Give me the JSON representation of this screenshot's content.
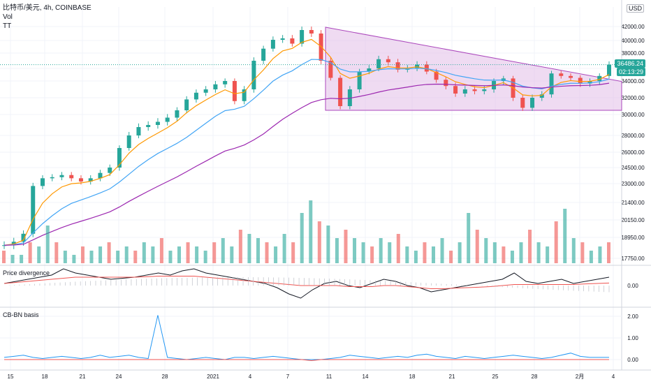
{
  "header": {
    "title": "比特币/美元, 4h, COINBASE",
    "line2": "Vol",
    "line3": "TT"
  },
  "price_axis_currency": "USD",
  "current_price": "36486.24",
  "countdown": "02:13:29",
  "panes": {
    "div_label": "Price divergence",
    "basis_label": "CB-BN basis"
  },
  "colors": {
    "up": "#26a69a",
    "down": "#ef5350",
    "ema_fast": "#ff9800",
    "ema_mid": "#42a5f5",
    "ema_slow": "#9c27b0",
    "triangle_fill": "#e1bee7",
    "triangle_stroke": "#ab47bc",
    "basis_up": "#2196f3",
    "basis_down": "#ef5350"
  },
  "chart_data": [
    {
      "type": "candlestick",
      "title": "比特币/美元, 4h, COINBASE",
      "x_tick_labels": [
        "15",
        "18",
        "21",
        "24",
        "28",
        "2021",
        "4",
        "7",
        "11",
        "14",
        "18",
        "21",
        "25",
        "28",
        "2月",
        "4"
      ],
      "y_tick_labels": [
        "17750.00",
        "18950.00",
        "20150.00",
        "21400.00",
        "23000.00",
        "24500.00",
        "26000.00",
        "28000.00",
        "30000.00",
        "32000.00",
        "34000.00",
        "36000.00",
        "38000.00",
        "40000.00",
        "42000.00"
      ],
      "ylim": [
        17750,
        42000
      ],
      "last_price": 36486.24,
      "indicators": [
        "EMA fast (orange)",
        "EMA mid (blue)",
        "EMA slow (purple)"
      ],
      "annotations": [
        "descending triangle from ~41900 to ~34600, base ~30500"
      ],
      "ohlc_close_approx": [
        18500,
        18700,
        19200,
        22800,
        23500,
        23600,
        23800,
        23500,
        23200,
        23500,
        24000,
        24500,
        26500,
        28000,
        28800,
        29000,
        29300,
        29700,
        30500,
        31800,
        32600,
        33000,
        33600,
        34000,
        31600,
        33000,
        37000,
        38700,
        40100,
        40300,
        39500,
        41500,
        41000,
        37000,
        34500,
        31000,
        33000,
        35500,
        36000,
        37200,
        36800,
        35800,
        36000,
        36500,
        35500,
        34200,
        33400,
        32500,
        33000,
        32800,
        33000,
        34000,
        34400,
        32000,
        30800,
        32000,
        32400,
        35200,
        34800,
        34500,
        33700,
        34000,
        34800,
        36486
      ]
    },
    {
      "type": "bar",
      "title": "Vol",
      "note": "volume bars, relative heights only (no axis printed)",
      "values": [
        3,
        2,
        2,
        5,
        4,
        9,
        5,
        3,
        2,
        4,
        3,
        4,
        5,
        3,
        4,
        3,
        5,
        4,
        6,
        3,
        4,
        5,
        4,
        3,
        5,
        6,
        4,
        8,
        7,
        6,
        5,
        4,
        7,
        5,
        12,
        15,
        10,
        9,
        6,
        8,
        6,
        5,
        4,
        6,
        5,
        7,
        4,
        3,
        5,
        4,
        6,
        3,
        5,
        12,
        8,
        6,
        5,
        4,
        3,
        5,
        8,
        5,
        4,
        10,
        13,
        6,
        5,
        3,
        4,
        5
      ]
    },
    {
      "type": "line",
      "title": "Price divergence",
      "y_tick_labels": [
        "0.00"
      ],
      "series": [
        {
          "values": [
            0.1,
            0.2,
            0.3,
            0.4,
            0.5,
            0.8,
            0.6,
            0.5,
            0.4,
            0.3,
            0.35,
            0.4,
            0.5,
            0.6,
            0.5,
            0.7,
            0.8,
            0.6,
            0.5,
            0.4,
            0.3,
            0.2,
            0.1,
            -0.1,
            -0.4,
            -0.6,
            -0.2,
            0.1,
            0.2,
            0.0,
            -0.1,
            0.1,
            0.3,
            0.2,
            0.0,
            -0.1,
            -0.3,
            -0.2,
            -0.1,
            0.0,
            0.1,
            0.2,
            0.3,
            0.6,
            0.2,
            0.1,
            0.2,
            0.3,
            0.1,
            0.2,
            0.3,
            0.4
          ]
        },
        {
          "values": [
            0.1,
            0.15,
            0.2,
            0.25,
            0.3,
            0.35,
            0.4,
            0.4,
            0.4,
            0.4,
            0.4,
            0.4,
            0.42,
            0.45,
            0.45,
            0.45,
            0.45,
            0.4,
            0.35,
            0.3,
            0.25,
            0.2,
            0.15,
            0.1,
            0.05,
            0.0,
            0.0,
            0.0,
            0.0,
            -0.05,
            -0.05,
            -0.05,
            0.0,
            0.0,
            -0.05,
            -0.1,
            -0.15,
            -0.15,
            -0.12,
            -0.1,
            -0.08,
            -0.05,
            0.0,
            0.05,
            0.05,
            0.05,
            0.05,
            0.05,
            0.05,
            0.08,
            0.1,
            0.12
          ]
        }
      ]
    },
    {
      "type": "line",
      "title": "CB-BN basis",
      "y_tick_labels": [
        "0.00",
        "1.00",
        "2.00"
      ],
      "ylim": [
        -0.3,
        2.1
      ],
      "series": [
        {
          "values": [
            0.1,
            0.15,
            0.2,
            0.1,
            0.05,
            0.1,
            0.15,
            0.1,
            0.05,
            0.1,
            0.2,
            0.1,
            0.15,
            0.2,
            0.1,
            0.05,
            2.05,
            0.1,
            0.05,
            0.0,
            0.05,
            0.1,
            0.05,
            0.0,
            0.1,
            0.1,
            0.05,
            0.1,
            0.15,
            0.1,
            0.05,
            0.0,
            -0.05,
            0.0,
            0.05,
            0.1,
            0.2,
            0.15,
            0.1,
            0.05,
            0.1,
            0.15,
            0.1,
            0.2,
            0.25,
            0.15,
            0.1,
            0.05,
            0.15,
            0.1,
            0.05,
            0.1,
            0.15,
            0.2,
            0.15,
            0.1,
            0.05,
            0.1,
            0.2,
            0.3,
            0.15,
            0.1,
            0.1,
            0.1
          ]
        }
      ]
    }
  ]
}
